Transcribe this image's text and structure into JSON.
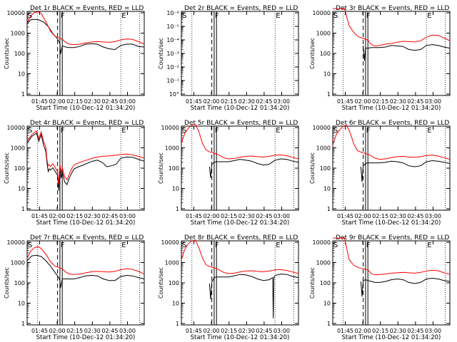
{
  "figure": {
    "time_axis_label": "Start Time (10-Dec-12 01:34:20)",
    "y_axis_label": "Counts/sec",
    "time_ticks": [
      "01:45",
      "02:00",
      "02:15",
      "02:30",
      "02:45",
      "03:00"
    ],
    "colors": {
      "events": "#000000",
      "lld": "#ff0000"
    }
  },
  "chart_data": [
    {
      "type": "line",
      "title": "Det 1r BLACK = Events, RED = LLD",
      "yscale": "log",
      "yticks": [
        "1",
        "10",
        "100",
        "1000",
        "10000"
      ],
      "ylim": [
        1,
        10000
      ],
      "xlim_minutes_from_start": [
        0,
        100
      ],
      "flags": [
        "S",
        "F",
        "E"
      ],
      "series": [
        {
          "name": "Events",
          "x": [
            0,
            3,
            6,
            10,
            14,
            18,
            22,
            26,
            28,
            28.5,
            30,
            33,
            36,
            40,
            45,
            50,
            55,
            60,
            65,
            70,
            75,
            80,
            85,
            90,
            95,
            100
          ],
          "y": [
            2000,
            3000,
            3200,
            3000,
            2400,
            1500,
            700,
            400,
            250,
            80,
            190,
            170,
            160,
            160,
            180,
            230,
            240,
            230,
            170,
            140,
            130,
            200,
            230,
            230,
            180,
            170
          ]
        },
        {
          "name": "LLD",
          "x": [
            0,
            3,
            6,
            9,
            12,
            16,
            20,
            24,
            28,
            30,
            33,
            36,
            40,
            45,
            50,
            55,
            60,
            65,
            70,
            75,
            80,
            85,
            90,
            95,
            100
          ],
          "y": [
            2200,
            4500,
            6500,
            7000,
            6000,
            2500,
            900,
            520,
            430,
            380,
            280,
            230,
            220,
            230,
            260,
            290,
            300,
            290,
            280,
            300,
            360,
            400,
            380,
            300,
            230
          ]
        }
      ]
    },
    {
      "type": "line",
      "title": "Det 2r BLACK = Events, RED = LLD",
      "yscale": "log",
      "yticks": [
        "10°",
        "10⁻¹",
        "10⁻²",
        "10⁻³",
        "10⁻⁴",
        "10⁻⁵",
        "10⁻⁶"
      ],
      "flags": [
        "S",
        "F",
        "E"
      ],
      "series": []
    },
    {
      "type": "line",
      "title": "Det 3r BLACK = Events, RED = LLD",
      "yscale": "log",
      "yticks": [
        "1",
        "10",
        "100",
        "1000",
        "10000"
      ],
      "ylim": [
        1,
        10000
      ],
      "flags": [
        "S",
        "F",
        "E"
      ],
      "series": [
        {
          "name": "Events",
          "x": [
            26,
            27,
            28,
            30,
            33,
            36,
            40,
            45,
            50,
            55,
            60,
            65,
            70,
            75,
            80,
            85,
            90,
            95,
            100
          ],
          "y": [
            200,
            40,
            150,
            150,
            160,
            160,
            160,
            170,
            200,
            190,
            180,
            130,
            120,
            130,
            200,
            220,
            200,
            170,
            150
          ]
        },
        {
          "name": "LLD",
          "x": [
            0,
            6,
            10,
            14,
            18,
            22,
            26,
            30,
            33,
            36,
            40,
            45,
            50,
            55,
            60,
            65,
            70,
            75,
            80,
            85,
            90,
            95,
            100
          ],
          "y": [
            10000,
            10000,
            10000,
            1600,
            800,
            500,
            420,
            350,
            220,
            190,
            200,
            230,
            250,
            280,
            310,
            300,
            290,
            330,
            480,
            600,
            580,
            450,
            330
          ]
        }
      ]
    },
    {
      "type": "line",
      "title": "Det 4r BLACK = Events, RED = LLD",
      "yscale": "log",
      "yticks": [
        "1",
        "10",
        "100",
        "1000",
        "10000"
      ],
      "ylim": [
        1,
        10000
      ],
      "flags": [
        "S",
        "F",
        "E"
      ],
      "series": [
        {
          "name": "Events",
          "x": [
            0,
            4,
            8,
            10,
            12,
            14,
            16,
            17,
            18,
            19,
            20,
            22,
            24,
            26,
            27,
            28,
            29,
            30,
            32,
            34,
            36,
            38,
            40,
            44,
            48,
            52,
            56,
            60,
            64,
            68,
            72,
            76,
            80,
            85,
            90,
            95,
            100
          ],
          "y": [
            1200,
            2500,
            3500,
            1500,
            3000,
            1000,
            500,
            150,
            60,
            80,
            70,
            90,
            60,
            40,
            8,
            90,
            30,
            60,
            20,
            15,
            30,
            50,
            80,
            100,
            120,
            150,
            180,
            200,
            160,
            100,
            110,
            130,
            250,
            280,
            270,
            220,
            180
          ]
        },
        {
          "name": "LLD",
          "x": [
            0,
            4,
            8,
            10,
            12,
            14,
            16,
            17,
            18,
            19,
            20,
            22,
            24,
            26,
            27,
            28,
            29,
            30,
            32,
            34,
            36,
            38,
            40,
            44,
            48,
            52,
            56,
            60,
            64,
            68,
            72,
            76,
            80,
            85,
            90,
            95,
            100
          ],
          "y": [
            1500,
            3000,
            4500,
            2000,
            4000,
            1500,
            800,
            200,
            110,
            120,
            100,
            140,
            90,
            60,
            15,
            140,
            50,
            90,
            35,
            25,
            45,
            80,
            120,
            150,
            180,
            210,
            250,
            280,
            300,
            310,
            320,
            340,
            370,
            380,
            350,
            300,
            250
          ]
        }
      ]
    },
    {
      "type": "line",
      "title": "Det 5r BLACK = Events, RED = LLD",
      "yscale": "log",
      "yticks": [
        "1",
        "10",
        "100",
        "1000",
        "10000"
      ],
      "ylim": [
        1,
        10000
      ],
      "flags": [
        "S",
        "F",
        "E"
      ],
      "series": [
        {
          "name": "Events",
          "x": [
            24,
            25,
            26,
            28,
            30,
            33,
            36,
            40,
            45,
            50,
            55,
            60,
            65,
            70,
            75,
            80,
            85,
            90,
            95,
            100
          ],
          "y": [
            100,
            30,
            130,
            160,
            170,
            170,
            170,
            170,
            190,
            220,
            200,
            180,
            140,
            120,
            130,
            200,
            230,
            220,
            180,
            160
          ]
        },
        {
          "name": "LLD",
          "x": [
            0,
            3,
            6,
            9,
            12,
            15,
            18,
            21,
            24,
            28,
            32,
            36,
            40,
            45,
            50,
            55,
            60,
            65,
            70,
            75,
            80,
            85,
            90,
            95,
            100
          ],
          "y": [
            1200,
            3500,
            6000,
            8500,
            9000,
            4000,
            1200,
            600,
            480,
            420,
            350,
            260,
            230,
            240,
            270,
            300,
            310,
            290,
            280,
            300,
            340,
            350,
            320,
            270,
            230
          ]
        }
      ]
    },
    {
      "type": "line",
      "title": "Det 6r BLACK = Events, RED = LLD",
      "yscale": "log",
      "yticks": [
        "1",
        "10",
        "100",
        "1000",
        "10000"
      ],
      "ylim": [
        1,
        10000
      ],
      "flags": [
        "S",
        "F",
        "E"
      ],
      "series": [
        {
          "name": "Events",
          "x": [
            24,
            25,
            26,
            28,
            30,
            33,
            36,
            40,
            45,
            50,
            55,
            60,
            65,
            70,
            75,
            80,
            85,
            90,
            95,
            100
          ],
          "y": [
            100,
            20,
            110,
            140,
            150,
            150,
            150,
            150,
            160,
            180,
            170,
            150,
            110,
            100,
            110,
            170,
            190,
            180,
            160,
            140
          ]
        },
        {
          "name": "LLD",
          "x": [
            0,
            3,
            6,
            9,
            12,
            15,
            18,
            21,
            24,
            28,
            32,
            36,
            40,
            45,
            50,
            55,
            60,
            65,
            70,
            75,
            80,
            85,
            90,
            95,
            100
          ],
          "y": [
            1000,
            3000,
            5000,
            7500,
            8000,
            3500,
            1100,
            550,
            470,
            410,
            340,
            250,
            220,
            230,
            260,
            290,
            300,
            280,
            270,
            290,
            330,
            340,
            310,
            260,
            220
          ]
        }
      ]
    },
    {
      "type": "line",
      "title": "Det 7r BLACK = Events, RED = LLD",
      "yscale": "log",
      "yticks": [
        "1",
        "10",
        "100",
        "1000",
        "10000"
      ],
      "ylim": [
        1,
        10000
      ],
      "flags": [
        "S",
        "F",
        "E"
      ],
      "series": [
        {
          "name": "Events",
          "x": [
            0,
            4,
            8,
            12,
            16,
            20,
            24,
            27,
            28,
            28.5,
            30,
            33,
            36,
            40,
            45,
            50,
            55,
            60,
            65,
            70,
            75,
            80,
            85,
            90,
            95,
            100
          ],
          "y": [
            900,
            1500,
            1600,
            1400,
            900,
            500,
            250,
            150,
            110,
            50,
            130,
            130,
            130,
            130,
            150,
            180,
            190,
            180,
            130,
            110,
            110,
            170,
            190,
            180,
            150,
            130
          ]
        },
        {
          "name": "LLD",
          "x": [
            0,
            3,
            6,
            9,
            12,
            16,
            20,
            24,
            28,
            30,
            33,
            36,
            40,
            45,
            50,
            55,
            60,
            65,
            70,
            75,
            80,
            85,
            90,
            95,
            100
          ],
          "y": [
            1200,
            2500,
            3500,
            4000,
            3300,
            1800,
            800,
            500,
            420,
            370,
            270,
            220,
            210,
            220,
            250,
            280,
            290,
            280,
            270,
            290,
            350,
            380,
            360,
            290,
            220
          ]
        }
      ]
    },
    {
      "type": "line",
      "title": "Det 8r BLACK = Events, RED = LLD",
      "yscale": "log",
      "yticks": [
        "1",
        "10",
        "100",
        "1000",
        "10000"
      ],
      "ylim": [
        1,
        10000
      ],
      "flags": [
        "S",
        "F",
        "E"
      ],
      "series": [
        {
          "name": "Events",
          "x": [
            24,
            25,
            26,
            28,
            30,
            33,
            36,
            40,
            45,
            50,
            55,
            60,
            65,
            70,
            75,
            78,
            78.5,
            79,
            80,
            85,
            90,
            95,
            100
          ],
          "y": [
            80,
            15,
            90,
            150,
            160,
            160,
            160,
            160,
            180,
            210,
            200,
            170,
            130,
            110,
            120,
            150,
            2,
            150,
            190,
            220,
            210,
            170,
            150
          ]
        },
        {
          "name": "LLD",
          "x": [
            0,
            3,
            6,
            9,
            12,
            15,
            18,
            21,
            24,
            28,
            32,
            36,
            40,
            45,
            50,
            55,
            60,
            65,
            70,
            75,
            80,
            85,
            90,
            95,
            100
          ],
          "y": [
            1000,
            3000,
            5500,
            7500,
            7800,
            3500,
            1200,
            600,
            480,
            420,
            350,
            260,
            230,
            240,
            270,
            300,
            310,
            290,
            280,
            300,
            340,
            350,
            320,
            270,
            230
          ]
        }
      ]
    },
    {
      "type": "line",
      "title": "Det 9r BLACK = Events, RED = LLD",
      "yscale": "log",
      "yticks": [
        "1",
        "10",
        "100",
        "1000",
        "10000"
      ],
      "ylim": [
        1,
        10000
      ],
      "flags": [
        "S",
        "F",
        "E"
      ],
      "series": [
        {
          "name": "Events",
          "x": [
            24,
            25,
            26,
            28,
            30,
            33,
            36,
            40,
            45,
            50,
            55,
            60,
            65,
            70,
            75,
            80,
            85,
            90,
            95,
            100
          ],
          "y": [
            100,
            20,
            110,
            120,
            110,
            100,
            90,
            90,
            100,
            120,
            130,
            120,
            90,
            80,
            90,
            130,
            140,
            130,
            110,
            100
          ]
        },
        {
          "name": "LLD",
          "x": [
            0,
            6,
            10,
            14,
            18,
            22,
            26,
            30,
            33,
            36,
            40,
            45,
            50,
            55,
            60,
            65,
            70,
            75,
            80,
            85,
            90,
            95,
            100
          ],
          "y": [
            10000,
            10000,
            10000,
            1000,
            550,
            430,
            380,
            340,
            230,
            200,
            210,
            220,
            240,
            250,
            260,
            250,
            240,
            260,
            300,
            330,
            310,
            250,
            210
          ]
        }
      ]
    }
  ]
}
